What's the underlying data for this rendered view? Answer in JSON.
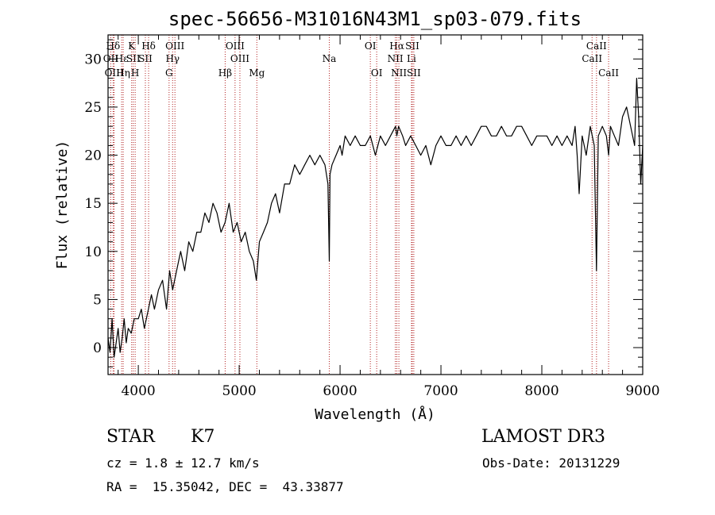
{
  "chart_data": {
    "type": "line",
    "title": "spec-56656-M31016N43M1_sp03-079.fits",
    "xlabel": "Wavelength (Å)",
    "ylabel": "Flux (relative)",
    "xlim": [
      3700,
      9000
    ],
    "ylim": [
      -2.8,
      32.5
    ],
    "x_ticks": [
      4000,
      5000,
      6000,
      7000,
      8000,
      9000
    ],
    "y_ticks": [
      0,
      5,
      10,
      15,
      20,
      25,
      30
    ],
    "series": [
      {
        "name": "spectrum",
        "x": [
          3700,
          3720,
          3740,
          3760,
          3780,
          3800,
          3820,
          3840,
          3860,
          3880,
          3900,
          3930,
          3960,
          4000,
          4030,
          4060,
          4100,
          4130,
          4160,
          4200,
          4240,
          4280,
          4310,
          4340,
          4380,
          4420,
          4460,
          4500,
          4540,
          4580,
          4620,
          4660,
          4700,
          4740,
          4780,
          4820,
          4860,
          4900,
          4940,
          4980,
          5020,
          5060,
          5100,
          5140,
          5170,
          5200,
          5240,
          5280,
          5320,
          5360,
          5400,
          5450,
          5500,
          5550,
          5600,
          5650,
          5700,
          5750,
          5800,
          5850,
          5880,
          5893,
          5900,
          5920,
          5960,
          6000,
          6020,
          6050,
          6100,
          6150,
          6200,
          6250,
          6300,
          6350,
          6400,
          6450,
          6500,
          6550,
          6563,
          6580,
          6620,
          6650,
          6700,
          6750,
          6800,
          6850,
          6900,
          6950,
          7000,
          7050,
          7100,
          7150,
          7200,
          7250,
          7300,
          7350,
          7400,
          7450,
          7500,
          7550,
          7600,
          7650,
          7700,
          7750,
          7800,
          7850,
          7900,
          7950,
          8000,
          8050,
          8100,
          8150,
          8200,
          8250,
          8300,
          8330,
          8350,
          8370,
          8400,
          8440,
          8480,
          8500,
          8520,
          8542,
          8560,
          8600,
          8640,
          8662,
          8680,
          8720,
          8760,
          8800,
          8840,
          8880,
          8900,
          8920,
          8940,
          8960,
          8980,
          9000
        ],
        "y": [
          1,
          -0.5,
          3,
          -1,
          0.5,
          2,
          -0.5,
          1,
          3,
          0.5,
          2,
          1.5,
          3,
          3,
          4,
          2,
          4,
          5.5,
          4,
          6,
          7,
          4,
          8,
          6,
          8,
          10,
          8,
          11,
          10,
          12,
          12,
          14,
          13,
          15,
          14,
          12,
          13,
          15,
          12,
          13,
          11,
          12,
          10,
          9,
          7,
          11,
          12,
          13,
          15,
          16,
          14,
          17,
          17,
          19,
          18,
          19,
          20,
          19,
          20,
          19,
          17,
          9,
          18,
          19,
          20,
          21,
          20,
          22,
          21,
          22,
          21,
          21,
          22,
          20,
          22,
          21,
          22,
          23,
          22,
          23,
          22,
          21,
          22,
          21,
          20,
          21,
          19,
          21,
          22,
          21,
          21,
          22,
          21,
          22,
          21,
          22,
          23,
          23,
          22,
          22,
          23,
          22,
          22,
          23,
          23,
          22,
          21,
          22,
          22,
          22,
          21,
          22,
          21,
          22,
          21,
          23,
          20,
          16,
          22,
          20,
          23,
          22,
          21,
          8,
          22,
          23,
          22,
          20,
          23,
          22,
          21,
          24,
          25,
          23,
          22,
          21,
          28,
          24,
          17,
          21
        ]
      }
    ],
    "spectral_lines": [
      {
        "name": "Hδ",
        "x": 3750,
        "row": 0
      },
      {
        "name": "OII",
        "x": 3727,
        "row": 1
      },
      {
        "name": "OIII",
        "x": 3760,
        "row": 2
      },
      {
        "name": "Hε",
        "x": 3835,
        "row": 1
      },
      {
        "name": "Hη",
        "x": 3850,
        "row": 2
      },
      {
        "name": "K",
        "x": 3934,
        "row": 0
      },
      {
        "name": "SII",
        "x": 3950,
        "row": 1
      },
      {
        "name": "H",
        "x": 3969,
        "row": 2
      },
      {
        "name": "Hδ",
        "x": 4102,
        "row": 0
      },
      {
        "name": "SII",
        "x": 4070,
        "row": 1
      },
      {
        "name": "OIII",
        "x": 4363,
        "row": 0
      },
      {
        "name": "Hγ",
        "x": 4340,
        "row": 1
      },
      {
        "name": "G",
        "x": 4305,
        "row": 2
      },
      {
        "name": "Hβ",
        "x": 4861,
        "row": 2
      },
      {
        "name": "OIII",
        "x": 4959,
        "row": 0
      },
      {
        "name": "OIII",
        "x": 5007,
        "row": 1
      },
      {
        "name": "Mg",
        "x": 5175,
        "row": 2
      },
      {
        "name": "Na",
        "x": 5893,
        "row": 1
      },
      {
        "name": "OI",
        "x": 6300,
        "row": 0
      },
      {
        "name": "OI",
        "x": 6363,
        "row": 2
      },
      {
        "name": "Hα",
        "x": 6563,
        "row": 0
      },
      {
        "name": "NII",
        "x": 6548,
        "row": 1
      },
      {
        "name": "NII",
        "x": 6583,
        "row": 2
      },
      {
        "name": "SII",
        "x": 6716,
        "row": 0
      },
      {
        "name": "Li",
        "x": 6708,
        "row": 1
      },
      {
        "name": "SII",
        "x": 6731,
        "row": 2
      },
      {
        "name": "CaII",
        "x": 8542,
        "row": 0
      },
      {
        "name": "CaII",
        "x": 8498,
        "row": 1
      },
      {
        "name": "CaII",
        "x": 8662,
        "row": 2
      }
    ],
    "colors": {
      "spectrum": "#000000",
      "lines": "#b22222",
      "axes": "#000000"
    }
  },
  "info": {
    "class_label": "STAR",
    "subclass": "K7",
    "survey": "LAMOST DR3",
    "redshift": "cz = 1.8 ± 12.7 km/s",
    "obs_date": "Obs-Date: 20131229",
    "coords": "RA =  15.35042, DEC =  43.33877"
  }
}
